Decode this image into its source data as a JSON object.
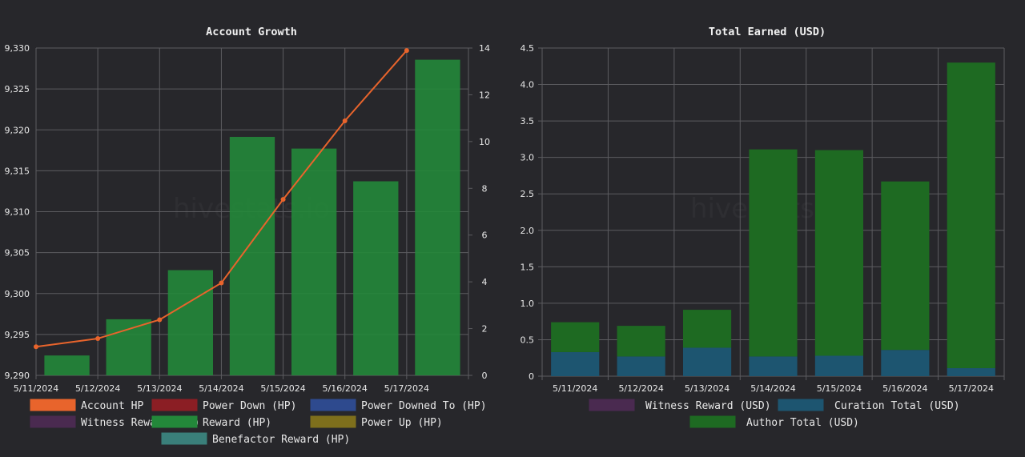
{
  "watermark": "hivestats.io",
  "colors": {
    "account_hp": "#e8642c",
    "power_down": "#8b1e24",
    "power_downed_to": "#2e4a8e",
    "witness_reward": "#4a2a50",
    "reward": "#23883a",
    "power_up": "#7e6f1c",
    "benefactor": "#3a7f7a",
    "curation": "#1d5570",
    "author": "#1e6a22",
    "grid": "#5c5c60"
  },
  "chart_data": [
    {
      "type": "bar",
      "title": "Account Growth",
      "categories": [
        "5/11/2024",
        "5/12/2024",
        "5/13/2024",
        "5/14/2024",
        "5/15/2024",
        "5/16/2024",
        "5/17/2024"
      ],
      "y_left": {
        "min": 9290,
        "max": 9330,
        "step": 5,
        "ticks": [
          "9,290",
          "9,295",
          "9,300",
          "9,305",
          "9,310",
          "9,315",
          "9,320",
          "9,325",
          "9,330"
        ]
      },
      "y_right": {
        "min": 0,
        "max": 14,
        "step": 2,
        "ticks": [
          "0",
          "2",
          "4",
          "6",
          "8",
          "10",
          "12",
          "14"
        ]
      },
      "series": [
        {
          "name": "Reward (HP)",
          "type": "bar",
          "axis": "right",
          "values": [
            0.85,
            2.4,
            4.5,
            10.2,
            9.7,
            8.3,
            13.5
          ]
        },
        {
          "name": "Account HP",
          "type": "line",
          "axis": "left",
          "values": [
            9293.5,
            9294.5,
            9296.8,
            9301.3,
            9311.5,
            9321.1,
            9329.7
          ]
        }
      ],
      "legend": [
        {
          "label": "Account HP",
          "color": "#e8642c"
        },
        {
          "label": "Power Down (HP)",
          "color": "#8b1e24"
        },
        {
          "label": "Power Downed To (HP)",
          "color": "#2e4a8e"
        },
        {
          "label": "Witness Reward (HP)",
          "color": "#4a2a50"
        },
        {
          "label": "Reward (HP)",
          "color": "#23883a"
        },
        {
          "label": "Power Up (HP)",
          "color": "#7e6f1c"
        },
        {
          "label": "Benefactor Reward (HP)",
          "color": "#3a7f7a"
        }
      ],
      "legend_placement": "bottom"
    },
    {
      "type": "bar",
      "stacked": true,
      "title": "Total Earned (USD)",
      "categories": [
        "5/11/2024",
        "5/12/2024",
        "5/13/2024",
        "5/14/2024",
        "5/15/2024",
        "5/16/2024",
        "5/17/2024"
      ],
      "y": {
        "min": 0,
        "max": 4.5,
        "step": 0.5,
        "ticks": [
          "0",
          "0.5",
          "1.0",
          "1.5",
          "2.0",
          "2.5",
          "3.0",
          "3.5",
          "4.0",
          "4.5"
        ]
      },
      "series": [
        {
          "name": "Curation Total (USD)",
          "values": [
            0.33,
            0.27,
            0.39,
            0.27,
            0.28,
            0.36,
            0.11
          ]
        },
        {
          "name": "Author Total (USD)",
          "values": [
            0.41,
            0.42,
            0.52,
            2.84,
            2.82,
            2.31,
            4.19
          ]
        }
      ],
      "legend": [
        {
          "label": "Witness Reward (USD)",
          "color": "#4a2a50"
        },
        {
          "label": "Curation Total (USD)",
          "color": "#1d5570"
        },
        {
          "label": "Author Total (USD)",
          "color": "#1e6a22"
        }
      ],
      "legend_placement": "bottom"
    }
  ]
}
